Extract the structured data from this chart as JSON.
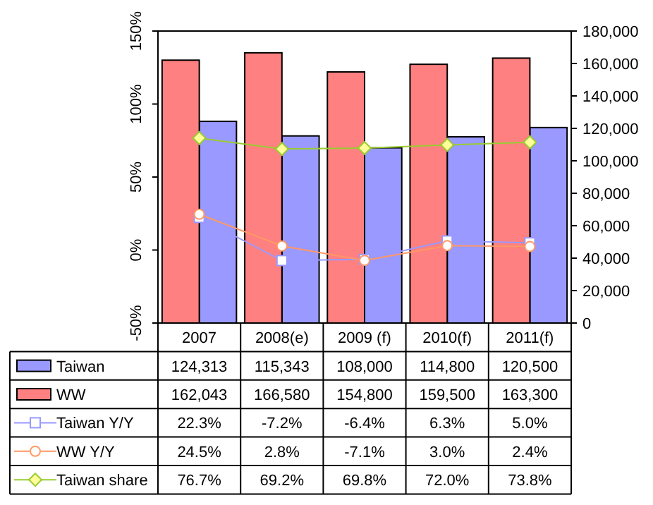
{
  "chart_data": {
    "type": "bar",
    "categories": [
      "2007",
      "2008(e)",
      "2009 (f)",
      "2010(f)",
      "2011(f)"
    ],
    "series": [
      {
        "name": "Taiwan",
        "axis": "y2",
        "color": "#9999ff",
        "values": [
          124313,
          115343,
          108000,
          114800,
          120500
        ],
        "value_labels": [
          "124,313",
          "115,343",
          "108,000",
          "114,800",
          "120,500"
        ]
      },
      {
        "name": "WW",
        "axis": "y2",
        "color": "#ff8080",
        "values": [
          162043,
          166580,
          154800,
          159500,
          163300
        ],
        "value_labels": [
          "162,043",
          "166,580",
          "154,800",
          "159,500",
          "163,300"
        ]
      },
      {
        "name": "Taiwan Y/Y",
        "type": "line",
        "axis": "y",
        "marker": "square",
        "color": "#9999ff",
        "values": [
          22.3,
          -7.2,
          -6.4,
          6.3,
          5.0
        ],
        "value_labels": [
          "22.3%",
          "-7.2%",
          "-6.4%",
          "6.3%",
          "5.0%"
        ]
      },
      {
        "name": "WW Y/Y",
        "type": "line",
        "axis": "y",
        "marker": "circle",
        "color": "#ff9966",
        "values": [
          24.5,
          2.8,
          -7.1,
          3.0,
          2.4
        ],
        "value_labels": [
          "24.5%",
          "2.8%",
          "-7.1%",
          "3.0%",
          "2.4%"
        ]
      },
      {
        "name": "Taiwan share",
        "type": "line",
        "axis": "y",
        "marker": "diamond",
        "color": "#99cc33",
        "values": [
          76.7,
          69.2,
          69.8,
          72.0,
          73.8
        ],
        "value_labels": [
          "76.7%",
          "69.2%",
          "69.8%",
          "72.0%",
          "73.8%"
        ]
      }
    ],
    "legend": "bottom left",
    "ylim": [
      -50,
      150
    ],
    "yticks": [
      {
        "value": -50,
        "label": "-50%"
      },
      {
        "value": 0,
        "label": "0%"
      },
      {
        "value": 50,
        "label": "50%"
      },
      {
        "value": 100,
        "label": "100%"
      },
      {
        "value": 150,
        "label": "150%"
      }
    ],
    "y2lim": [
      0,
      180000
    ],
    "y2ticks": [
      0,
      {
        "value": 20000,
        "label": "20,000"
      },
      {
        "value": 40000,
        "label": "40,000"
      },
      {
        "value": 60000,
        "label": "60,000"
      },
      {
        "value": 80000,
        "label": "80,000"
      },
      {
        "value": 100000,
        "label": "100,000"
      },
      {
        "value": 120000,
        "label": "120,000"
      },
      {
        "value": 140000,
        "label": "140,000"
      },
      {
        "value": 160000,
        "label": "160,000"
      },
      {
        "value": 180000,
        "label": "180,000"
      }
    ]
  }
}
